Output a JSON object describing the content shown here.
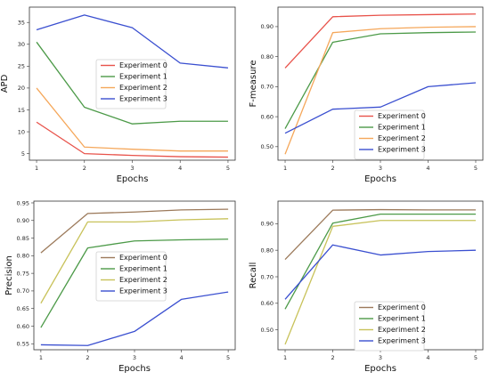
{
  "chart_data": [
    {
      "type": "line",
      "xlabel": "Epochs",
      "ylabel": "APD",
      "x": [
        1,
        2,
        3,
        4,
        5
      ],
      "xticks": [
        1,
        2,
        3,
        4,
        5
      ],
      "ylim": [
        3.5,
        38.5
      ],
      "yticks": [
        5,
        10,
        15,
        20,
        25,
        30,
        35
      ],
      "legend_placement": "center-right",
      "series": [
        {
          "name": "Experiment 0",
          "color": "#e8524a",
          "values": [
            12.2,
            5.0,
            4.6,
            4.3,
            4.2
          ]
        },
        {
          "name": "Experiment 1",
          "color": "#4c9a48",
          "values": [
            30.5,
            15.6,
            11.8,
            12.4,
            12.4
          ]
        },
        {
          "name": "Experiment 2",
          "color": "#f5a75a",
          "values": [
            20.0,
            6.5,
            6.0,
            5.6,
            5.6
          ]
        },
        {
          "name": "Experiment 3",
          "color": "#3a4fd0",
          "values": [
            33.3,
            36.7,
            33.8,
            25.7,
            24.6
          ]
        }
      ]
    },
    {
      "type": "line",
      "xlabel": "Epochs",
      "ylabel": "F-measure",
      "x": [
        1,
        2,
        3,
        4,
        5
      ],
      "xticks": [
        1,
        2,
        3,
        4,
        5
      ],
      "ylim": [
        0.455,
        0.965
      ],
      "yticks": [
        0.5,
        0.6,
        0.7,
        0.8,
        0.9
      ],
      "legend_placement": "lower-right",
      "series": [
        {
          "name": "Experiment 0",
          "color": "#e8524a",
          "values": [
            0.762,
            0.933,
            0.938,
            0.94,
            0.942
          ]
        },
        {
          "name": "Experiment 1",
          "color": "#4c9a48",
          "values": [
            0.56,
            0.848,
            0.876,
            0.88,
            0.882
          ]
        },
        {
          "name": "Experiment 2",
          "color": "#f5a75a",
          "values": [
            0.475,
            0.88,
            0.893,
            0.898,
            0.9
          ]
        },
        {
          "name": "Experiment 3",
          "color": "#3a4fd0",
          "values": [
            0.545,
            0.625,
            0.632,
            0.7,
            0.713
          ]
        }
      ]
    },
    {
      "type": "line",
      "xlabel": "Epochs",
      "ylabel": "Precision",
      "x": [
        1,
        2,
        3,
        4,
        5
      ],
      "xticks": [
        1,
        2,
        3,
        4,
        5
      ],
      "ylim": [
        0.533,
        0.955
      ],
      "yticks": [
        0.55,
        0.6,
        0.65,
        0.7,
        0.75,
        0.8,
        0.85,
        0.9,
        0.95
      ],
      "legend_placement": "center-right",
      "series": [
        {
          "name": "Experiment 0",
          "color": "#9c7a5b",
          "values": [
            0.808,
            0.92,
            0.924,
            0.93,
            0.932
          ]
        },
        {
          "name": "Experiment 1",
          "color": "#4c9a48",
          "values": [
            0.596,
            0.822,
            0.842,
            0.845,
            0.847
          ]
        },
        {
          "name": "Experiment 2",
          "color": "#c8c25a",
          "values": [
            0.665,
            0.896,
            0.896,
            0.902,
            0.905
          ]
        },
        {
          "name": "Experiment 3",
          "color": "#3a4fd0",
          "values": [
            0.547,
            0.545,
            0.585,
            0.676,
            0.697
          ]
        }
      ]
    },
    {
      "type": "line",
      "xlabel": "Epochs",
      "ylabel": "Recall",
      "x": [
        1,
        2,
        3,
        4,
        5
      ],
      "xticks": [
        1,
        2,
        3,
        4,
        5
      ],
      "ylim": [
        0.425,
        0.985
      ],
      "yticks": [
        0.5,
        0.6,
        0.7,
        0.8,
        0.9
      ],
      "legend_placement": "lower-right",
      "series": [
        {
          "name": "Experiment 0",
          "color": "#9c7a5b",
          "values": [
            0.765,
            0.951,
            0.953,
            0.952,
            0.952
          ]
        },
        {
          "name": "Experiment 1",
          "color": "#4c9a48",
          "values": [
            0.578,
            0.902,
            0.936,
            0.936,
            0.936
          ]
        },
        {
          "name": "Experiment 2",
          "color": "#c8c25a",
          "values": [
            0.445,
            0.89,
            0.912,
            0.912,
            0.912
          ]
        },
        {
          "name": "Experiment 3",
          "color": "#3a4fd0",
          "values": [
            0.615,
            0.82,
            0.782,
            0.795,
            0.8
          ]
        }
      ]
    }
  ]
}
